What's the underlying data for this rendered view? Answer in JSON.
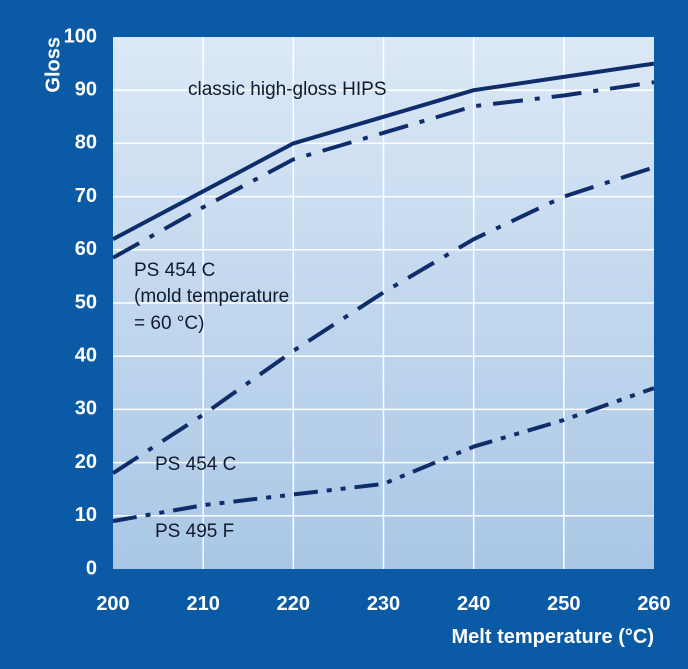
{
  "chart_data": {
    "type": "line",
    "xlabel": "Melt temperature (°C)",
    "ylabel": "Gloss",
    "xlim": [
      200,
      260
    ],
    "ylim": [
      0,
      100
    ],
    "x_ticks": [
      200,
      210,
      220,
      230,
      240,
      250,
      260
    ],
    "y_ticks": [
      0,
      10,
      20,
      30,
      40,
      50,
      60,
      70,
      80,
      90,
      100
    ],
    "grid": true,
    "legend": "none",
    "series": [
      {
        "name": "classic high-gloss HIPS",
        "style": "solid",
        "x": [
          200,
          210,
          220,
          230,
          240,
          250,
          260
        ],
        "y": [
          62,
          71,
          80,
          85,
          90,
          92.5,
          95
        ]
      },
      {
        "name": "PS 454 C (mold temperature = 60 °C)",
        "style": "dash-dot",
        "x": [
          200,
          210,
          220,
          230,
          240,
          250,
          260
        ],
        "y": [
          58.5,
          68,
          77,
          82,
          87,
          89,
          91.5
        ]
      },
      {
        "name": "PS 454 C",
        "style": "dash-dot",
        "x": [
          200,
          210,
          220,
          230,
          240,
          250,
          260
        ],
        "y": [
          18,
          29,
          41,
          52,
          62,
          70,
          75.5
        ]
      },
      {
        "name": "PS 495 F",
        "style": "dash-dot-dot",
        "x": [
          200,
          210,
          220,
          230,
          240,
          250,
          260
        ],
        "y": [
          9,
          12,
          14,
          16,
          23,
          28,
          34
        ]
      }
    ],
    "annotations": [
      {
        "text": "classic high-gloss HIPS"
      },
      {
        "text": "PS 454 C"
      },
      {
        "text": "(mold temperature"
      },
      {
        "text": "= 60 °C)"
      },
      {
        "text": "PS 454 C"
      },
      {
        "text": "PS 495 F"
      }
    ]
  },
  "colors": {
    "frame": "#0b5aa6",
    "plot_top": "#dbe8f6",
    "plot_bottom": "#a9c7e6",
    "line": "#0f2d6a",
    "grid": "#ffffff"
  }
}
